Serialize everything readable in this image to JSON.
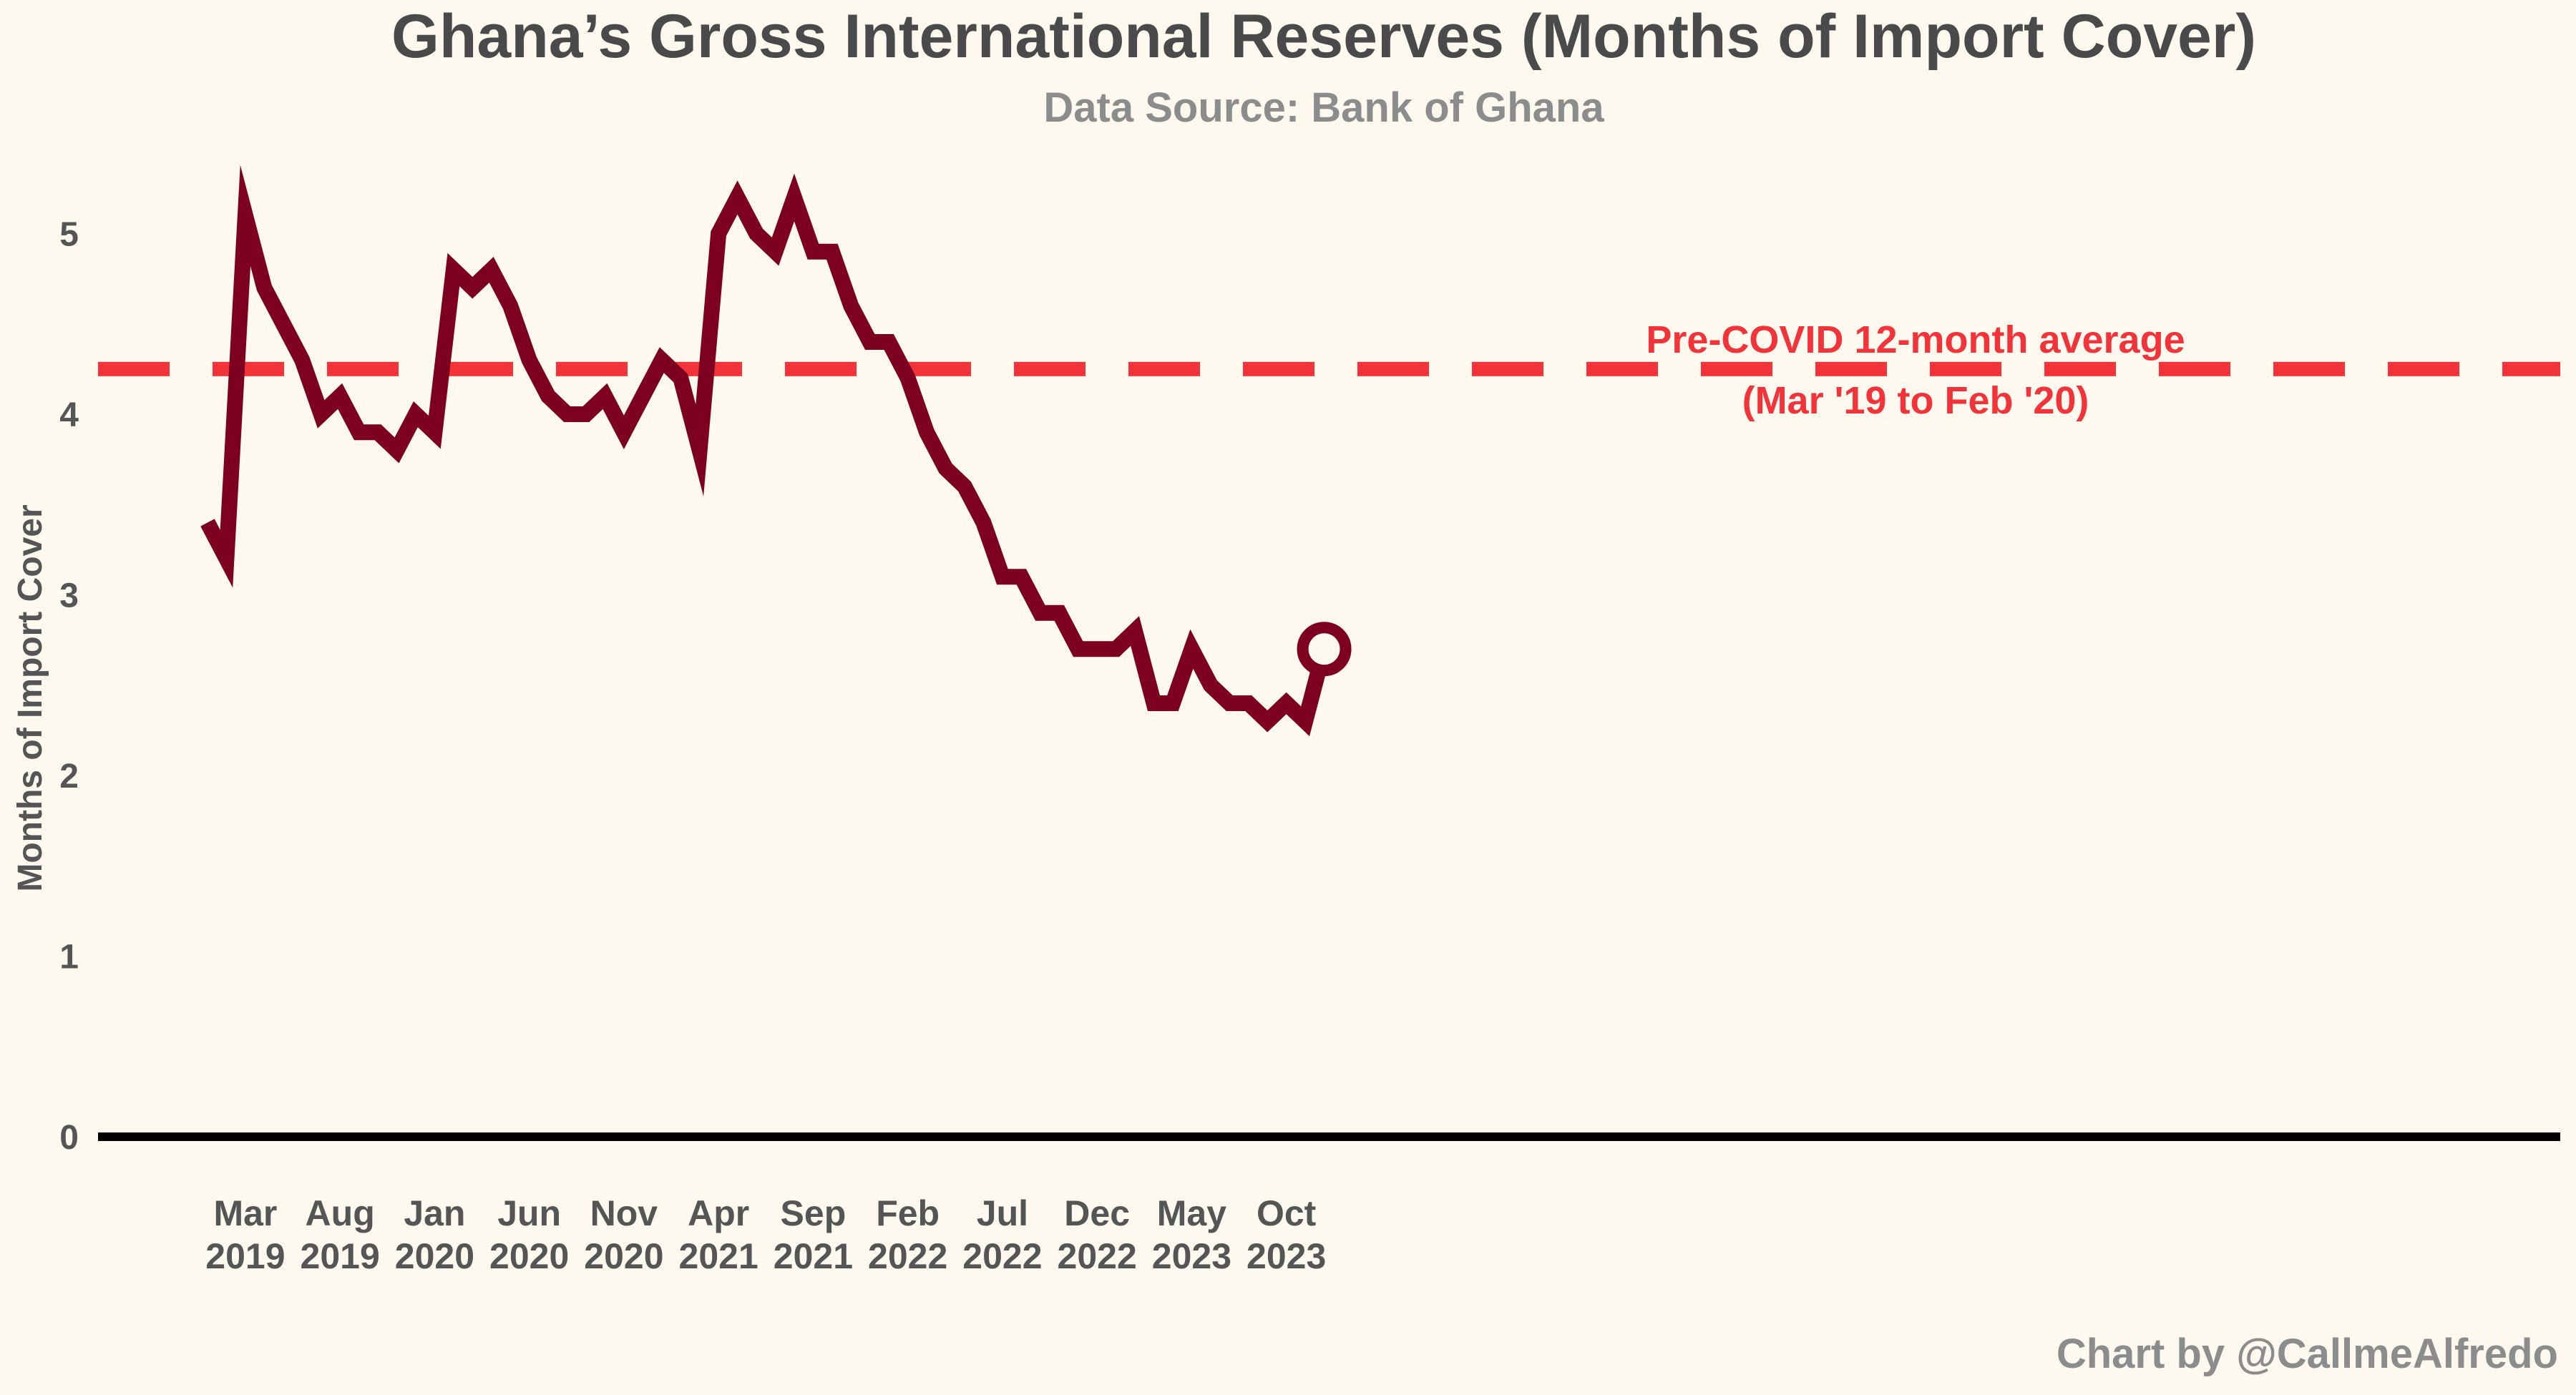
{
  "header": {
    "title": "Ghana’s Gross International Reserves (Months of Import Cover)",
    "subtitle": "Data Source: Bank of Ghana"
  },
  "footer": {
    "credit": "Chart by @CallmeAlfredo"
  },
  "annotation": {
    "line1": "Pre-COVID 12-month average",
    "line2": "(Mar '19 to Feb '20)"
  },
  "colors": {
    "background": "#fdf9ee",
    "series": "#7d0020",
    "reference": "#f2333a",
    "baseline": "#000000"
  },
  "chart_data": {
    "type": "line",
    "title": "Ghana’s Gross International Reserves (Months of Import Cover)",
    "subtitle": "Data Source: Bank of Ghana",
    "xlabel": "",
    "ylabel": "Months of Import Cover",
    "ylim": [
      0,
      5.4
    ],
    "yticks": [
      "0",
      "1",
      "2",
      "3",
      "4",
      "5"
    ],
    "grid": false,
    "xticks": [
      {
        "date": "2019-03",
        "month": "Mar",
        "year": "2019"
      },
      {
        "date": "2019-08",
        "month": "Aug",
        "year": "2019"
      },
      {
        "date": "2020-01",
        "month": "Jan",
        "year": "2020"
      },
      {
        "date": "2020-06",
        "month": "Jun",
        "year": "2020"
      },
      {
        "date": "2020-11",
        "month": "Nov",
        "year": "2020"
      },
      {
        "date": "2021-04",
        "month": "Apr",
        "year": "2021"
      },
      {
        "date": "2021-09",
        "month": "Sep",
        "year": "2021"
      },
      {
        "date": "2022-02",
        "month": "Feb",
        "year": "2022"
      },
      {
        "date": "2022-07",
        "month": "Jul",
        "year": "2022"
      },
      {
        "date": "2022-12",
        "month": "Dec",
        "year": "2022"
      },
      {
        "date": "2023-05",
        "month": "May",
        "year": "2023"
      },
      {
        "date": "2023-10",
        "month": "Oct",
        "year": "2023"
      }
    ],
    "reference_line": {
      "value": 4.25,
      "style": "dashed"
    },
    "series": [
      {
        "x": [
          "2019-01",
          "2019-02",
          "2019-03",
          "2019-04",
          "2019-05",
          "2019-06",
          "2019-07",
          "2019-08",
          "2019-09",
          "2019-10",
          "2019-11",
          "2019-12",
          "2020-01",
          "2020-02",
          "2020-03",
          "2020-04",
          "2020-05",
          "2020-06",
          "2020-07",
          "2020-08",
          "2020-09",
          "2020-10",
          "2020-11",
          "2020-12",
          "2021-01",
          "2021-02",
          "2021-03",
          "2021-04",
          "2021-05",
          "2021-06",
          "2021-07",
          "2021-08",
          "2021-09",
          "2021-10",
          "2021-11",
          "2021-12",
          "2022-01",
          "2022-02",
          "2022-03",
          "2022-04",
          "2022-05",
          "2022-06",
          "2022-07",
          "2022-08",
          "2022-09",
          "2022-10",
          "2022-11",
          "2022-12",
          "2023-01",
          "2023-02",
          "2023-03",
          "2023-04",
          "2023-05",
          "2023-06",
          "2023-07",
          "2023-08",
          "2023-09",
          "2023-10",
          "2023-11",
          "2023-12"
        ],
        "values": [
          3.4,
          3.2,
          5.1,
          4.7,
          4.5,
          4.3,
          4.0,
          4.1,
          3.9,
          3.9,
          3.8,
          4.0,
          3.9,
          4.8,
          4.7,
          4.8,
          4.6,
          4.3,
          4.1,
          4.0,
          4.0,
          4.1,
          3.9,
          4.1,
          4.3,
          4.2,
          3.8,
          5.0,
          5.2,
          5.0,
          4.9,
          5.2,
          4.9,
          4.9,
          4.6,
          4.4,
          4.4,
          4.2,
          3.9,
          3.7,
          3.6,
          3.4,
          3.1,
          3.1,
          2.9,
          2.9,
          2.7,
          2.7,
          2.7,
          2.8,
          2.4,
          2.4,
          2.7,
          2.5,
          2.4,
          2.4,
          2.3,
          2.4,
          2.3,
          2.7
        ],
        "last_point_marker": "open-circle"
      }
    ]
  }
}
